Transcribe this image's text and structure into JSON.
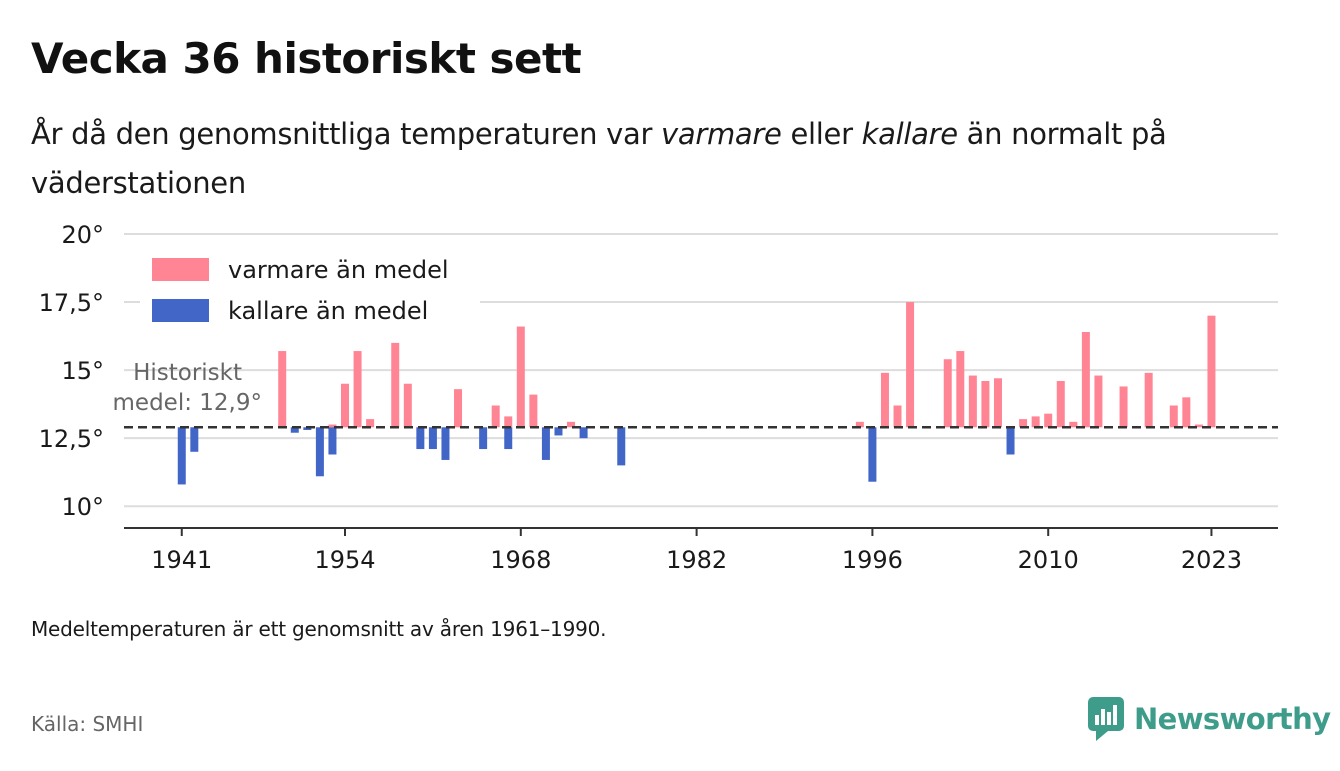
{
  "header": {
    "title": "Vecka 36 historiskt sett",
    "subtitle_part1": "År då den genomsnittliga temperaturen var ",
    "subtitle_warm": "varmare",
    "subtitle_part2": " eller ",
    "subtitle_cold": "kallare",
    "subtitle_part3": " än normalt på väderstationen"
  },
  "chart_data": {
    "type": "bar",
    "baseline": 12.9,
    "baseline_annotation": [
      "Historiskt",
      "medel: 12,9°"
    ],
    "ylim": [
      9.2,
      20
    ],
    "y_ticks": [
      10,
      12.5,
      15,
      17.5,
      20
    ],
    "y_tick_labels": [
      "10°",
      "12,5°",
      "15°",
      "17,5°",
      "20°"
    ],
    "x_ticks": [
      1941,
      1954,
      1968,
      1982,
      1996,
      2010,
      2023
    ],
    "x_tick_labels": [
      "1941",
      "1954",
      "1968",
      "1982",
      "1996",
      "2010",
      "2023"
    ],
    "xlim": [
      1936.4,
      2028.3
    ],
    "legend": {
      "position": "top-left",
      "warm_label": "varmare än medel",
      "cold_label": "kallare än medel"
    },
    "colors": {
      "warm": "#ff8595",
      "cold": "#4266c7"
    },
    "series": [
      {
        "name": "varmare än medel",
        "points": [
          [
            1949,
            15.7
          ],
          [
            1953,
            13.0
          ],
          [
            1954,
            14.5
          ],
          [
            1955,
            15.7
          ],
          [
            1956,
            13.2
          ],
          [
            1958,
            16.0
          ],
          [
            1959,
            14.5
          ],
          [
            1963,
            14.3
          ],
          [
            1966,
            13.7
          ],
          [
            1967,
            13.3
          ],
          [
            1968,
            16.6
          ],
          [
            1969,
            14.1
          ],
          [
            1972,
            13.1
          ],
          [
            1995,
            13.1
          ],
          [
            1997,
            14.9
          ],
          [
            1998,
            13.7
          ],
          [
            1999,
            17.5
          ],
          [
            2002,
            15.4
          ],
          [
            2003,
            15.7
          ],
          [
            2004,
            14.8
          ],
          [
            2005,
            14.6
          ],
          [
            2006,
            14.7
          ],
          [
            2008,
            13.2
          ],
          [
            2009,
            13.3
          ],
          [
            2010,
            13.4
          ],
          [
            2011,
            14.6
          ],
          [
            2012,
            13.1
          ],
          [
            2013,
            16.4
          ],
          [
            2014,
            14.8
          ],
          [
            2016,
            14.4
          ],
          [
            2018,
            14.9
          ],
          [
            2020,
            13.7
          ],
          [
            2021,
            14.0
          ],
          [
            2022,
            13.0
          ],
          [
            2023,
            17.0
          ]
        ]
      },
      {
        "name": "kallare än medel",
        "points": [
          [
            1941,
            10.8
          ],
          [
            1942,
            12.0
          ],
          [
            1950,
            12.7
          ],
          [
            1951,
            12.8
          ],
          [
            1952,
            11.1
          ],
          [
            1953,
            11.9
          ],
          [
            1960,
            12.1
          ],
          [
            1961,
            12.1
          ],
          [
            1962,
            11.7
          ],
          [
            1965,
            12.1
          ],
          [
            1967,
            12.1
          ],
          [
            1970,
            11.7
          ],
          [
            1971,
            12.6
          ],
          [
            1973,
            12.5
          ],
          [
            1976,
            11.5
          ],
          [
            1996,
            10.9
          ],
          [
            2007,
            11.9
          ]
        ]
      }
    ]
  },
  "footer": {
    "footnote": "Medeltemperaturen är ett genomsnitt av åren 1961–1990.",
    "source": "Källa: SMHI",
    "brand": "Newsworthy"
  },
  "icons": {
    "logo": "newsworthy-logo-icon"
  }
}
